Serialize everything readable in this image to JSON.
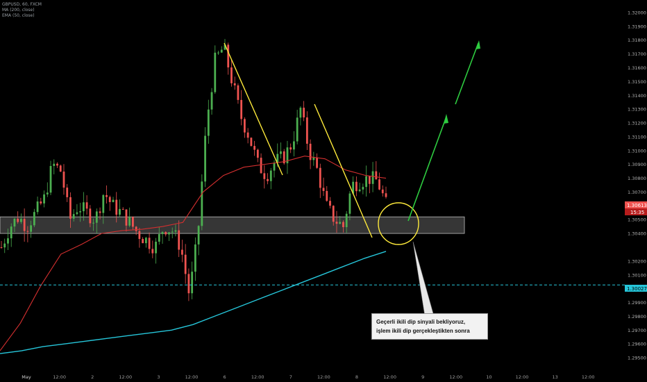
{
  "header": {
    "symbol_line": "GBPUSD, 60, FXCM",
    "ma_line": "MA (200, close)",
    "ema_line": "EMA (50, close)"
  },
  "annotation": {
    "line1": "Geçerli ikili dip sinyali bekliyoruz,",
    "line2": "işlem ikili dip gerçekleştikten sonra"
  },
  "colors": {
    "background": "#000000",
    "bull": "#4caf50",
    "bear": "#ef5350",
    "ma200": "#26c6da",
    "ema50": "#d32f2f",
    "trendline": "#ffeb3b",
    "arrow": "#2ecc40",
    "level": "#26c6da",
    "zone": "#787878"
  },
  "chart_data": {
    "type": "candlestick",
    "ylim": [
      1.2945,
      1.3205
    ],
    "price_ticks": [
      "1.32000",
      "1.31900",
      "1.31800",
      "1.31700",
      "1.31600",
      "1.31500",
      "1.31400",
      "1.31300",
      "1.31200",
      "1.31100",
      "1.31000",
      "1.30900",
      "1.30800",
      "1.30700",
      "1.30500",
      "1.30400",
      "1.30200",
      "1.30100",
      "1.29900",
      "1.29800",
      "1.29700",
      "1.29600",
      "1.29500"
    ],
    "time_ticks": [
      "May",
      "12:00",
      "2",
      "12:00",
      "3",
      "12:00",
      "6",
      "12:00",
      "7",
      "12:00",
      "8",
      "12:00",
      "9",
      "12:00",
      "10",
      "12:00",
      "13",
      "12:00"
    ],
    "last_price": {
      "label": "1.30613",
      "value": 1.30613,
      "timer": "15:35"
    },
    "level_line": {
      "label": "1.30027",
      "value": 1.30027
    },
    "support_zone": {
      "low": 1.304,
      "high": 1.3052
    },
    "series": [
      {
        "name": "MA (200, close)",
        "values": [
          1.2953,
          1.2955,
          1.2958,
          1.296,
          1.2962,
          1.2964,
          1.2966,
          1.2968,
          1.297,
          1.2974,
          1.298,
          1.2986,
          1.2992,
          1.2998,
          1.3004,
          1.301,
          1.3016,
          1.3022,
          1.3027
        ]
      },
      {
        "name": "EMA (50, close)",
        "values": [
          1.2955,
          1.2975,
          1.3002,
          1.3025,
          1.3032,
          1.304,
          1.3042,
          1.3043,
          1.3045,
          1.3048,
          1.307,
          1.3082,
          1.3088,
          1.309,
          1.3092,
          1.3096,
          1.3094,
          1.3086,
          1.3082,
          1.308
        ]
      }
    ],
    "candles_close_path": [
      1.303,
      1.3045,
      1.3052,
      1.3045,
      1.3055,
      1.3065,
      1.309,
      1.3085,
      1.305,
      1.306,
      1.3055,
      1.305,
      1.307,
      1.306,
      1.3055,
      1.3048,
      1.304,
      1.3035,
      1.303,
      1.3045,
      1.3042,
      1.303,
      1.2995,
      1.304,
      1.312,
      1.3165,
      1.3175,
      1.315,
      1.3125,
      1.311,
      1.309,
      1.3082,
      1.3092,
      1.3095,
      1.3105,
      1.313,
      1.31,
      1.3085,
      1.306,
      1.305,
      1.3045,
      1.3075,
      1.3078,
      1.308,
      1.3078,
      1.3061
    ],
    "trendlines": [
      {
        "from": [
          1.3173
        ],
        "to": [
          1.308
        ]
      },
      {
        "from": [
          1.313
        ],
        "to": [
          1.3042
        ]
      }
    ]
  }
}
